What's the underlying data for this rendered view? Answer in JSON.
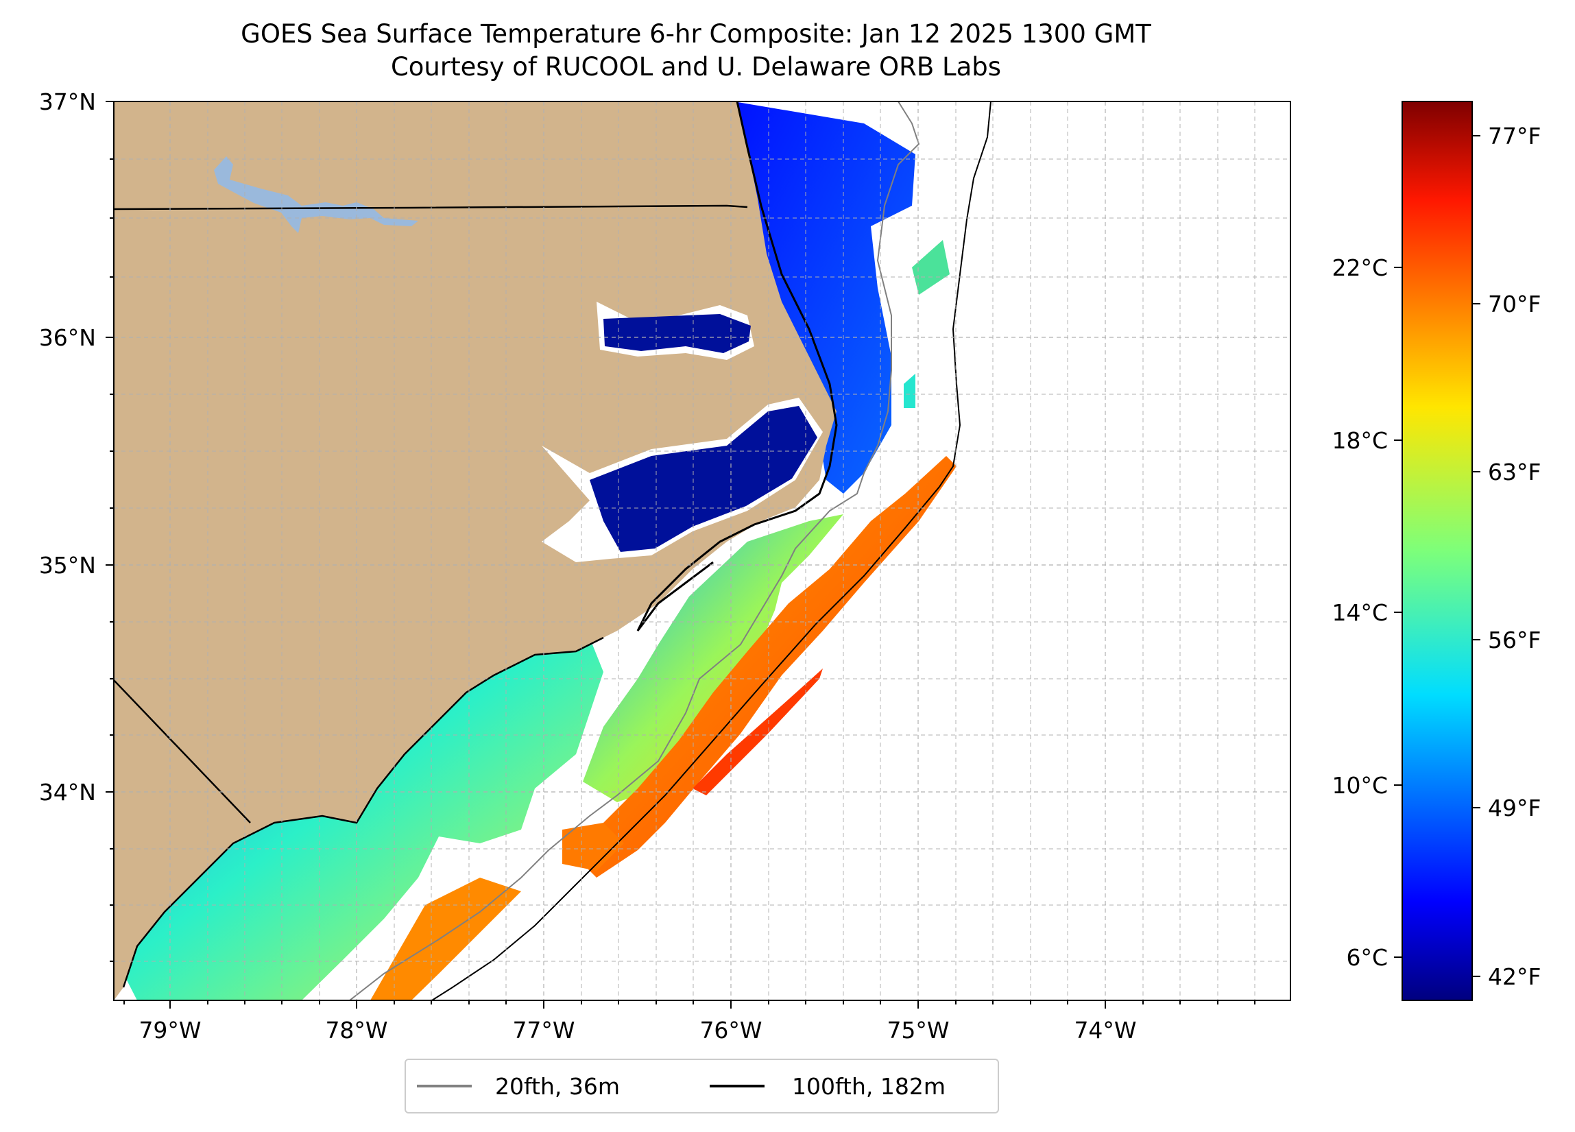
{
  "title": {
    "line1": "GOES Sea Surface Temperature 6-hr Composite: Jan 12 2025 1300 GMT",
    "line2": "Courtesy of RUCOOL and U. Delaware ORB Labs"
  },
  "map": {
    "lon_range": [
      -79.3,
      -73.0
    ],
    "lat_range": [
      33.1,
      37.0
    ],
    "lon_ticks": [
      "79°W",
      "78°W",
      "77°W",
      "76°W",
      "75°W",
      "74°W"
    ],
    "lat_ticks": [
      "37°N",
      "36°N",
      "35°N",
      "34°N"
    ],
    "grid": true,
    "land_color": "#d2b48c",
    "lake_color": "#9ab9dc",
    "coast_color": "#000000"
  },
  "legend": {
    "position": "bottom-center",
    "items": [
      {
        "label": "20fth, 36m",
        "color": "#808080"
      },
      {
        "label": "100fth, 182m",
        "color": "#000000"
      }
    ]
  },
  "colorbar": {
    "cmap": "jet",
    "range_f": [
      40,
      79
    ],
    "celsius_ticks": [
      "22°C",
      "18°C",
      "14°C",
      "10°C",
      "6°C"
    ],
    "fahrenheit_ticks": [
      "77°F",
      "70°F",
      "63°F",
      "56°F",
      "49°F",
      "42°F"
    ]
  }
}
